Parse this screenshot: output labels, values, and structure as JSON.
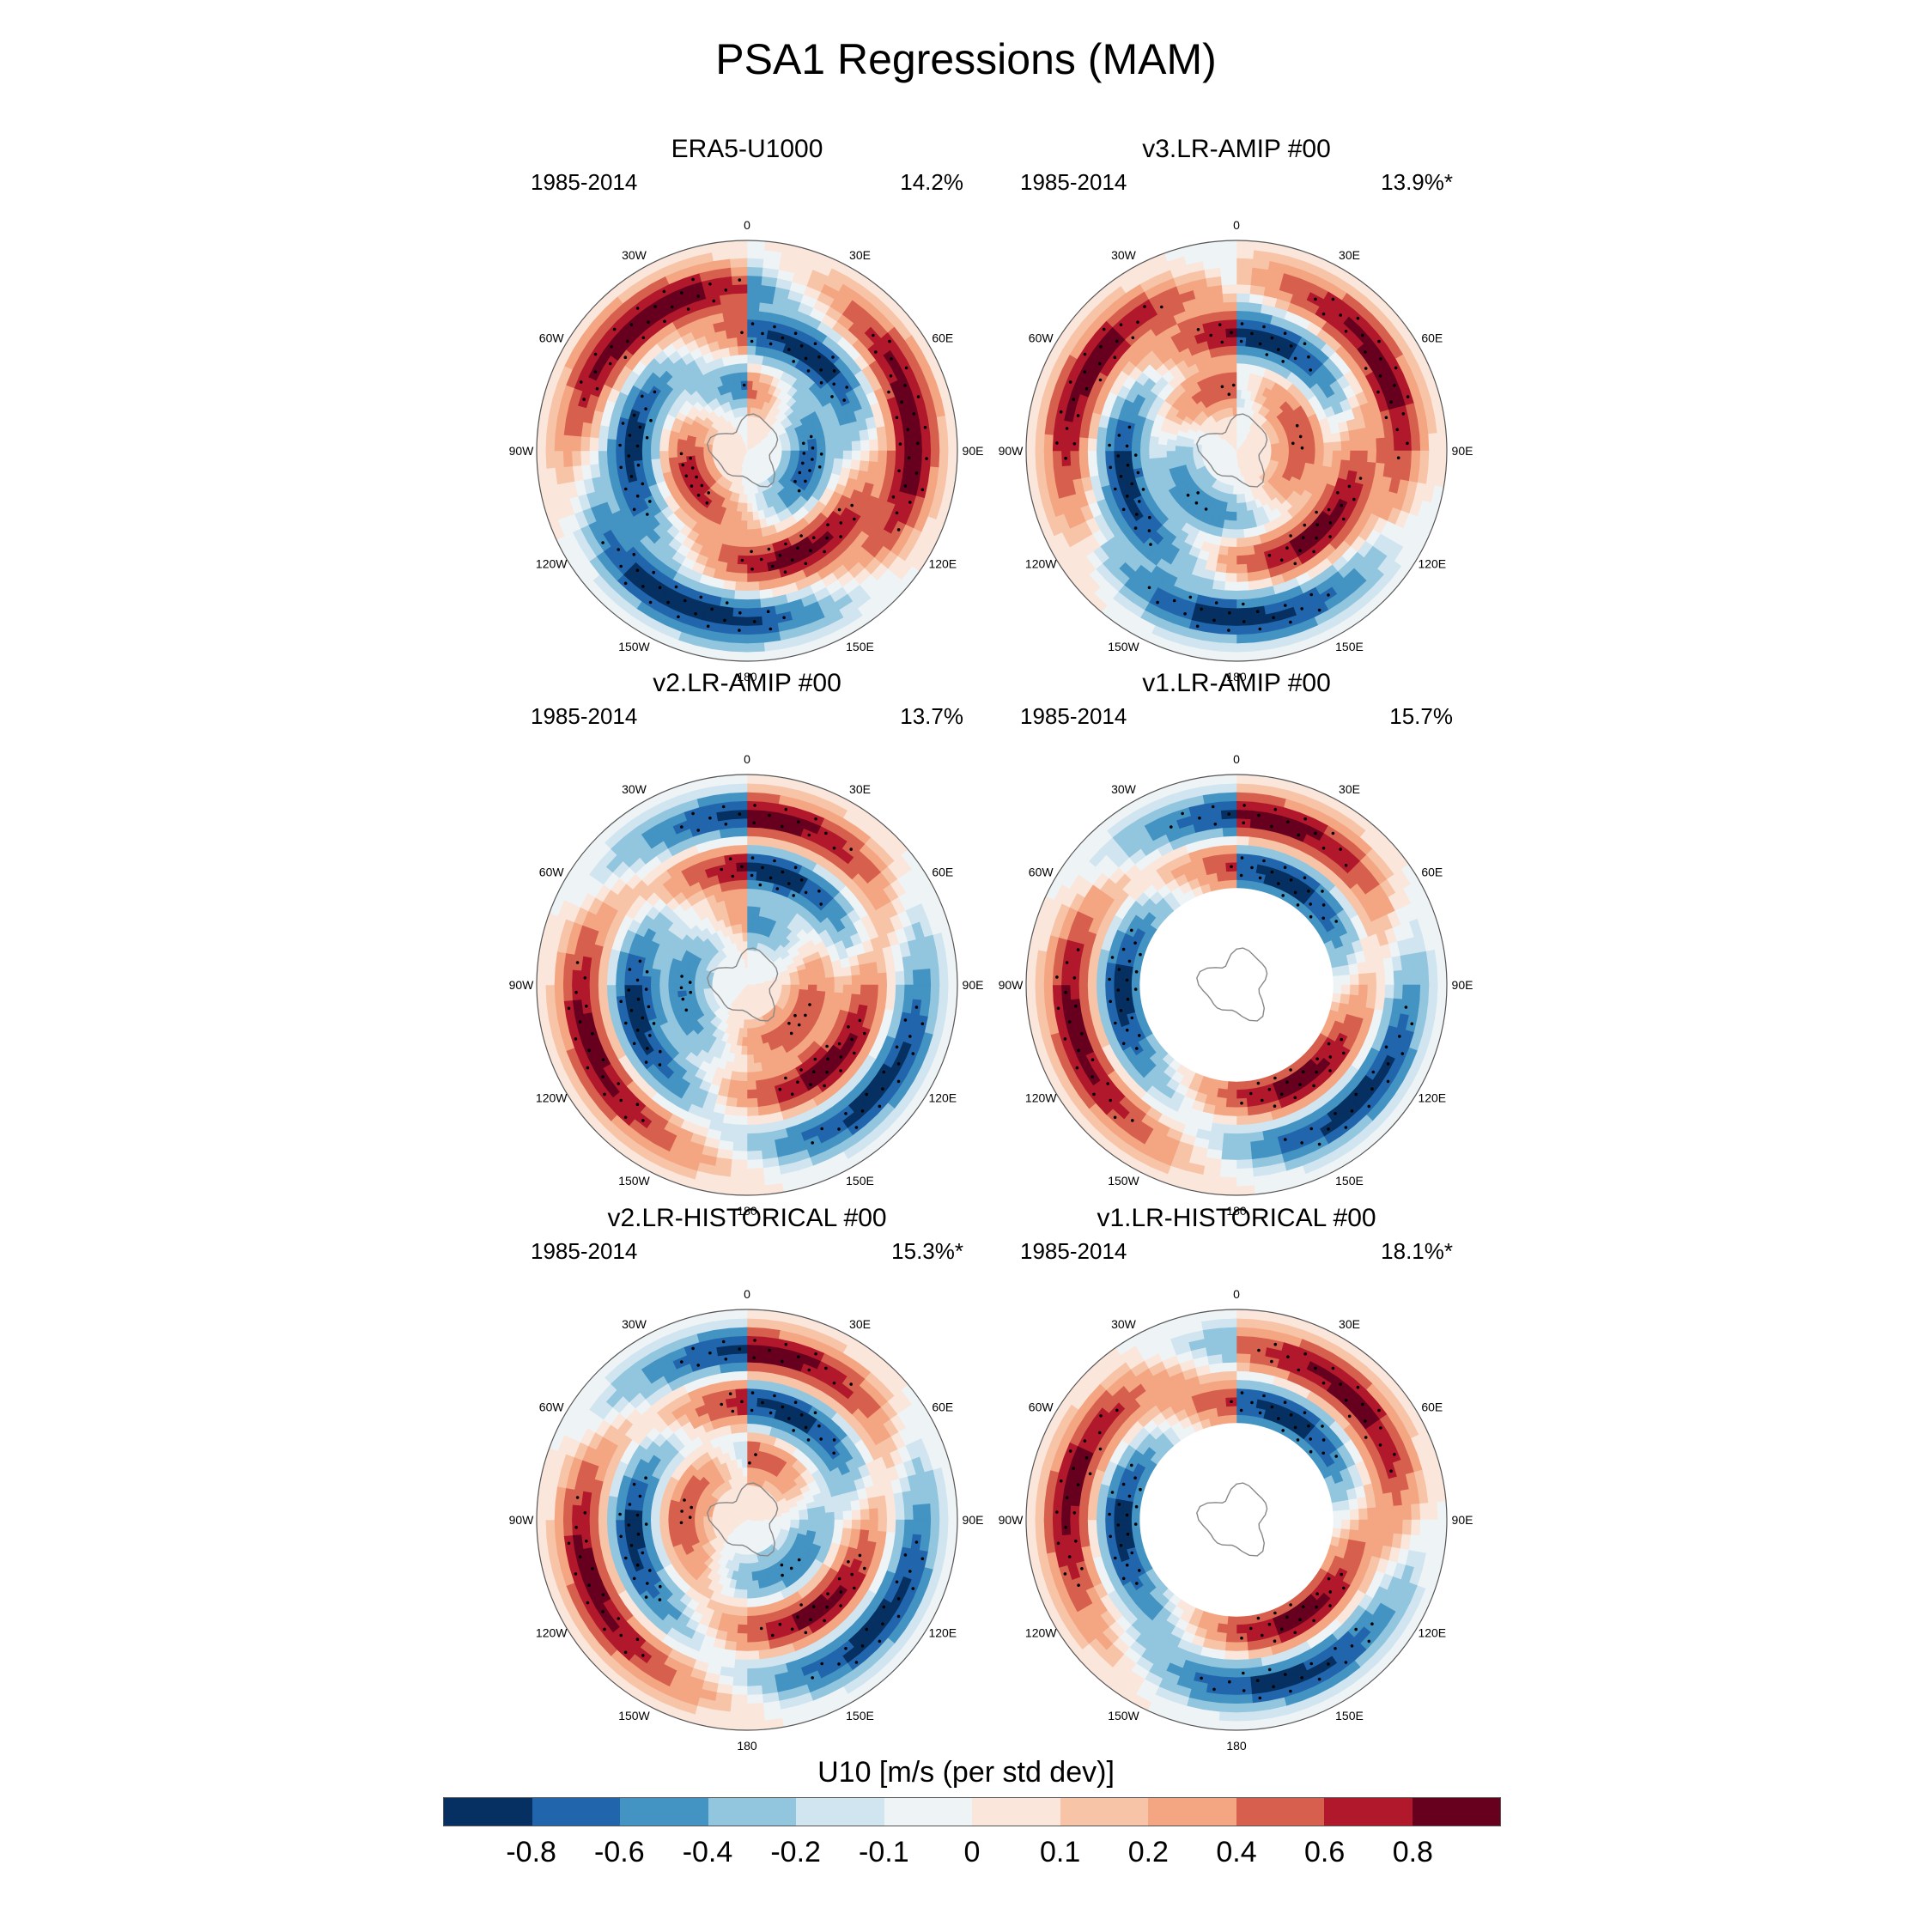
{
  "figure": {
    "title": "PSA1 Regressions (MAM)"
  },
  "longitude_labels": [
    "0",
    "30E",
    "60E",
    "90E",
    "120E",
    "150E",
    "180",
    "150W",
    "120W",
    "90W",
    "60W",
    "30W"
  ],
  "panels": [
    {
      "title": "ERA5-U1000",
      "period": "1985-2014",
      "percent": "14.2%",
      "masked_center": false,
      "rings": [
        [
          0.3,
          -0.7,
          2.4,
          1.3
        ],
        [
          0.55,
          0.9,
          3.6,
          1.5
        ],
        [
          0.8,
          -1.0,
          4.9,
          1.5
        ]
      ]
    },
    {
      "title": "v3.LR-AMIP  #00",
      "period": "1985-2014",
      "percent": "13.9%*",
      "masked_center": false,
      "rings": [
        [
          0.3,
          0.6,
          2.0,
          1.3
        ],
        [
          0.55,
          0.9,
          3.3,
          1.5
        ],
        [
          0.8,
          -0.9,
          4.5,
          1.5
        ]
      ]
    },
    {
      "title": "v2.LR-AMIP  #00",
      "period": "1985-2014",
      "percent": "13.7%",
      "masked_center": false,
      "rings": [
        [
          0.3,
          0.6,
          2.8,
          1.3
        ],
        [
          0.55,
          0.9,
          3.3,
          1.5
        ],
        [
          0.8,
          -0.9,
          3.6,
          1.5
        ]
      ]
    },
    {
      "title": "v1.LR-AMIP  #00",
      "period": "1985-2014",
      "percent": "15.7%",
      "masked_center": true,
      "rings": [
        [
          0.3,
          0.0,
          0.0,
          1.0
        ],
        [
          0.55,
          0.9,
          3.5,
          1.5
        ],
        [
          0.8,
          -0.9,
          3.7,
          1.5
        ]
      ]
    },
    {
      "title": "v2.LR-HISTORICAL  #00",
      "period": "1985-2014",
      "percent": "15.3%*",
      "masked_center": false,
      "rings": [
        [
          0.3,
          -0.6,
          3.0,
          1.3
        ],
        [
          0.55,
          0.9,
          3.4,
          1.5
        ],
        [
          0.8,
          -0.9,
          3.6,
          1.5
        ]
      ]
    },
    {
      "title": "v1.LR-HISTORICAL  #00",
      "period": "1985-2014",
      "percent": "18.1%*",
      "masked_center": true,
      "rings": [
        [
          0.3,
          0.0,
          0.0,
          1.0
        ],
        [
          0.55,
          0.9,
          3.5,
          1.5
        ],
        [
          0.8,
          -0.9,
          4.2,
          1.5
        ]
      ]
    }
  ],
  "colorbar": {
    "title": "U10 [m/s (per std dev)]",
    "colors": [
      "#053061",
      "#2166ac",
      "#4393c3",
      "#92c5de",
      "#d1e5f0",
      "#eef3f6",
      "#fbe6dc",
      "#f7c4a8",
      "#f4a582",
      "#d6604d",
      "#b2182b",
      "#67001f"
    ],
    "tick_labels": [
      "-0.8",
      "-0.6",
      "-0.4",
      "-0.2",
      "-0.1",
      "0",
      "0.1",
      "0.2",
      "0.4",
      "0.6",
      "0.8"
    ],
    "levels": [
      -0.8,
      -0.6,
      -0.4,
      -0.2,
      -0.1,
      0,
      0.1,
      0.2,
      0.4,
      0.6,
      0.8
    ]
  }
}
